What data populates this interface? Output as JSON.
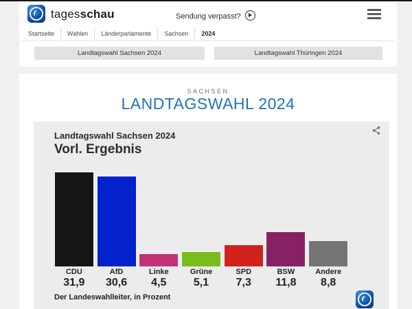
{
  "header": {
    "brand_regular": "tages",
    "brand_bold": "schau",
    "sendung_verpasst": "Sendung verpasst?",
    "icons": {
      "logo": "tagesschau-globe-icon",
      "play": "play-icon",
      "menu": "hamburger-icon",
      "share": "share-icon"
    }
  },
  "breadcrumb": {
    "items": [
      {
        "label": "Startseite",
        "active": false
      },
      {
        "label": "Wahlen",
        "active": false
      },
      {
        "label": "Länderparlamente",
        "active": false
      },
      {
        "label": "Sachsen",
        "active": false
      },
      {
        "label": "2024",
        "active": true
      }
    ]
  },
  "quick_links": [
    {
      "label": "Landtagswahl Sachsen 2024"
    },
    {
      "label": "Landtagswahl Thüringen 2024"
    }
  ],
  "page": {
    "kicker": "SACHSEN",
    "title": "LANDTAGSWAHL 2024"
  },
  "chart_data": {
    "type": "bar",
    "title": "Landtagswahl Sachsen 2024",
    "subtitle": "Vorl. Ergebnis",
    "source": "Der Landeswahlleiter, in Prozent",
    "unit": "Prozent",
    "categories": [
      "CDU",
      "AfD",
      "Linke",
      "Grüne",
      "SPD",
      "BSW",
      "Andere"
    ],
    "values": [
      31.9,
      30.6,
      4.5,
      5.1,
      7.3,
      11.8,
      8.8
    ],
    "value_labels": [
      "31,9",
      "30,6",
      "4,5",
      "5,1",
      "7,3",
      "11,8",
      "8,8"
    ],
    "bar_colors": [
      "#161616",
      "#0322cd",
      "#c03276",
      "#7bbc1d",
      "#d2221e",
      "#882064",
      "#747474"
    ],
    "ylim": [
      0,
      33
    ],
    "grid": false,
    "legend": "none"
  },
  "theme": {
    "page_bg": "#f0f0f0",
    "card_bg": "#ffffff",
    "chart_card_bg": "#ececec",
    "title_blue": "#2173b5",
    "kicker_gray": "#6e6e6e",
    "button_bg": "#e2e2e2",
    "text_dark": "#2b2b2b"
  }
}
